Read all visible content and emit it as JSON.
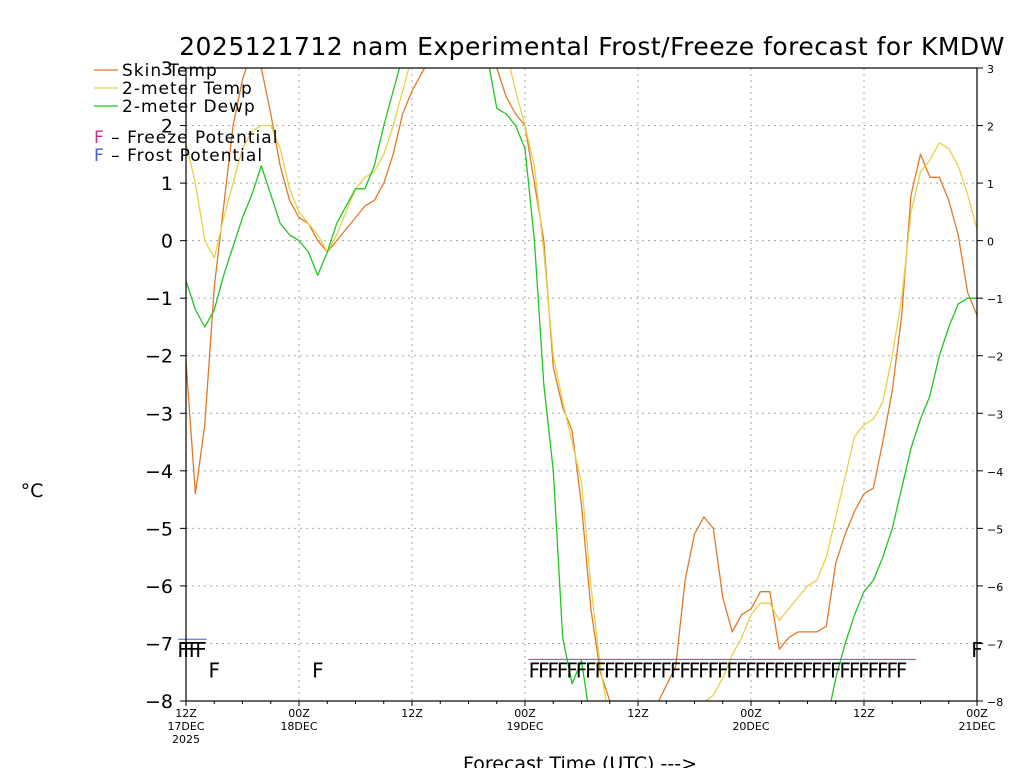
{
  "chart_data": {
    "type": "line",
    "title": "2025121712 nam Experimental Frost/Freeze forecast for KMDW",
    "xlabel": "Forecast Time (UTC) --->",
    "ylabel": "°C",
    "xlim": [
      0,
      84
    ],
    "ylim": [
      -8,
      3
    ],
    "yticks": [
      -8,
      -7,
      -6,
      -5,
      -4,
      -3,
      -2,
      -1,
      0,
      1,
      2,
      3
    ],
    "x_ticks": [
      {
        "x": 0,
        "line1": "12Z",
        "line2": "17DEC",
        "line3": "2025"
      },
      {
        "x": 12,
        "line1": "00Z",
        "line2": "18DEC",
        "line3": ""
      },
      {
        "x": 24,
        "line1": "12Z",
        "line2": "",
        "line3": ""
      },
      {
        "x": 36,
        "line1": "00Z",
        "line2": "19DEC",
        "line3": ""
      },
      {
        "x": 48,
        "line1": "12Z",
        "line2": "",
        "line3": ""
      },
      {
        "x": 60,
        "line1": "00Z",
        "line2": "20DEC",
        "line3": ""
      },
      {
        "x": 72,
        "line1": "12Z",
        "line2": "",
        "line3": ""
      },
      {
        "x": 84,
        "line1": "00Z",
        "line2": "21DEC",
        "line3": ""
      }
    ],
    "grid": true,
    "legend_position": "top-left",
    "series": [
      {
        "name": "Skin Temp",
        "color": "#e07a28",
        "points": [
          [
            0,
            -2.1
          ],
          [
            1,
            -4.4
          ],
          [
            2,
            -3.2
          ],
          [
            3,
            -0.8
          ],
          [
            4,
            0.6
          ],
          [
            5,
            2.0
          ],
          [
            6,
            2.8
          ],
          [
            7,
            3.3
          ],
          [
            8,
            3.0
          ],
          [
            9,
            2.2
          ],
          [
            10,
            1.3
          ],
          [
            11,
            0.7
          ],
          [
            12,
            0.4
          ],
          [
            13,
            0.3
          ],
          [
            14,
            0.0
          ],
          [
            15,
            -0.2
          ],
          [
            16,
            0.0
          ],
          [
            17,
            0.2
          ],
          [
            18,
            0.4
          ],
          [
            19,
            0.6
          ],
          [
            20,
            0.7
          ],
          [
            21,
            1.0
          ],
          [
            22,
            1.5
          ],
          [
            23,
            2.2
          ],
          [
            24,
            2.6
          ],
          [
            25,
            2.9
          ],
          [
            26,
            3.2
          ],
          [
            32,
            3.3
          ],
          [
            33,
            3.0
          ],
          [
            34,
            2.5
          ],
          [
            35,
            2.2
          ],
          [
            36,
            2.0
          ],
          [
            37,
            1.0
          ],
          [
            38,
            0.0
          ],
          [
            39,
            -2.2
          ],
          [
            40,
            -2.9
          ],
          [
            41,
            -3.3
          ],
          [
            42,
            -4.6
          ],
          [
            43,
            -6.4
          ],
          [
            44,
            -7.5
          ],
          [
            45,
            -8.0
          ],
          [
            46,
            -8.4
          ],
          [
            49,
            -8.4
          ],
          [
            52,
            -7.4
          ],
          [
            53,
            -5.9
          ],
          [
            54,
            -5.1
          ],
          [
            55,
            -4.8
          ],
          [
            56,
            -5.0
          ],
          [
            57,
            -6.2
          ],
          [
            58,
            -6.8
          ],
          [
            59,
            -6.5
          ],
          [
            60,
            -6.4
          ],
          [
            61,
            -6.1
          ],
          [
            62,
            -6.1
          ],
          [
            63,
            -7.1
          ],
          [
            64,
            -6.9
          ],
          [
            65,
            -6.8
          ],
          [
            66,
            -6.8
          ],
          [
            67,
            -6.8
          ],
          [
            68,
            -6.7
          ],
          [
            69,
            -5.6
          ],
          [
            70,
            -5.1
          ],
          [
            71,
            -4.7
          ],
          [
            72,
            -4.4
          ],
          [
            73,
            -4.3
          ],
          [
            74,
            -3.5
          ],
          [
            75,
            -2.6
          ],
          [
            76,
            -1.3
          ],
          [
            77,
            0.8
          ],
          [
            78,
            1.5
          ],
          [
            79,
            1.1
          ],
          [
            80,
            1.1
          ],
          [
            81,
            0.7
          ],
          [
            82,
            0.1
          ],
          [
            83,
            -0.9
          ],
          [
            84,
            -1.3
          ]
        ]
      },
      {
        "name": "2-meter Temp",
        "color": "#e6d24a",
        "points": [
          [
            0,
            1.7
          ],
          [
            1,
            1.0
          ],
          [
            2,
            0.0
          ],
          [
            3,
            -0.3
          ],
          [
            4,
            0.4
          ],
          [
            5,
            1.0
          ],
          [
            6,
            1.6
          ],
          [
            7,
            1.9
          ],
          [
            8,
            2.0
          ],
          [
            9,
            2.0
          ],
          [
            10,
            1.6
          ],
          [
            11,
            0.9
          ],
          [
            12,
            0.5
          ],
          [
            13,
            0.3
          ],
          [
            14,
            0.1
          ],
          [
            15,
            -0.2
          ],
          [
            16,
            0.1
          ],
          [
            17,
            0.5
          ],
          [
            18,
            0.9
          ],
          [
            19,
            1.1
          ],
          [
            20,
            1.2
          ],
          [
            21,
            1.5
          ],
          [
            22,
            2.0
          ],
          [
            23,
            2.6
          ],
          [
            24,
            3.2
          ],
          [
            34,
            3.3
          ],
          [
            35,
            2.6
          ],
          [
            36,
            2.0
          ],
          [
            37,
            1.3
          ],
          [
            38,
            -0.2
          ],
          [
            39,
            -2.0
          ],
          [
            40,
            -2.8
          ],
          [
            41,
            -3.5
          ],
          [
            42,
            -4.2
          ],
          [
            43,
            -6.0
          ],
          [
            44,
            -7.4
          ],
          [
            45,
            -8.4
          ],
          [
            52,
            -8.4
          ],
          [
            56,
            -7.9
          ],
          [
            57,
            -7.6
          ],
          [
            58,
            -7.2
          ],
          [
            59,
            -6.9
          ],
          [
            60,
            -6.5
          ],
          [
            61,
            -6.3
          ],
          [
            62,
            -6.3
          ],
          [
            63,
            -6.6
          ],
          [
            64,
            -6.4
          ],
          [
            65,
            -6.2
          ],
          [
            66,
            -6.0
          ],
          [
            67,
            -5.9
          ],
          [
            68,
            -5.5
          ],
          [
            69,
            -4.8
          ],
          [
            70,
            -4.1
          ],
          [
            71,
            -3.4
          ],
          [
            72,
            -3.2
          ],
          [
            73,
            -3.1
          ],
          [
            74,
            -2.8
          ],
          [
            75,
            -2.0
          ],
          [
            76,
            -1.0
          ],
          [
            77,
            0.5
          ],
          [
            78,
            1.2
          ],
          [
            79,
            1.4
          ],
          [
            80,
            1.7
          ],
          [
            81,
            1.6
          ],
          [
            82,
            1.3
          ],
          [
            83,
            0.8
          ],
          [
            84,
            0.2
          ]
        ]
      },
      {
        "name": "2-meter Dewp",
        "color": "#22c422",
        "points": [
          [
            0,
            -0.7
          ],
          [
            1,
            -1.2
          ],
          [
            2,
            -1.5
          ],
          [
            3,
            -1.2
          ],
          [
            4,
            -0.6
          ],
          [
            5,
            -0.1
          ],
          [
            6,
            0.4
          ],
          [
            7,
            0.8
          ],
          [
            8,
            1.3
          ],
          [
            9,
            0.8
          ],
          [
            10,
            0.3
          ],
          [
            11,
            0.1
          ],
          [
            12,
            0.0
          ],
          [
            13,
            -0.2
          ],
          [
            14,
            -0.6
          ],
          [
            15,
            -0.2
          ],
          [
            16,
            0.3
          ],
          [
            17,
            0.6
          ],
          [
            18,
            0.9
          ],
          [
            19,
            0.9
          ],
          [
            20,
            1.3
          ],
          [
            21,
            2.0
          ],
          [
            22,
            2.6
          ],
          [
            23,
            3.2
          ],
          [
            32,
            3.2
          ],
          [
            33,
            2.3
          ],
          [
            34,
            2.2
          ],
          [
            35,
            2.0
          ],
          [
            36,
            1.6
          ],
          [
            37,
            0.0
          ],
          [
            38,
            -2.5
          ],
          [
            39,
            -4.0
          ],
          [
            40,
            -6.9
          ],
          [
            41,
            -7.7
          ],
          [
            42,
            -7.3
          ],
          [
            43,
            -8.4
          ],
          [
            68,
            -8.4
          ],
          [
            69,
            -7.6
          ],
          [
            70,
            -7.0
          ],
          [
            71,
            -6.5
          ],
          [
            72,
            -6.1
          ],
          [
            73,
            -5.9
          ],
          [
            74,
            -5.5
          ],
          [
            75,
            -5.0
          ],
          [
            76,
            -4.3
          ],
          [
            77,
            -3.6
          ],
          [
            78,
            -3.1
          ],
          [
            79,
            -2.7
          ],
          [
            80,
            -2.0
          ],
          [
            81,
            -1.5
          ],
          [
            82,
            -1.1
          ],
          [
            83,
            -1.0
          ],
          [
            84,
            -1.0
          ]
        ]
      }
    ],
    "potential_legend": [
      {
        "letter": "F",
        "text": " – Freeze Potential",
        "color": "#cc2f8e"
      },
      {
        "letter": "F",
        "text": " – Frost Potential",
        "color": "#4a5fd0"
      }
    ],
    "frost_markers": {
      "color": "#4a5fd0",
      "y": -7.1,
      "letter": "F",
      "x": [
        -0.3,
        0.3,
        0.9,
        1.6,
        84
      ]
    },
    "freeze_markers": {
      "color": "#cc2f8e",
      "y": -7.45,
      "letter": "F",
      "x": [
        3,
        14,
        37,
        38,
        39,
        40,
        41,
        42,
        43,
        44,
        45,
        46,
        47,
        48,
        49,
        50,
        51,
        52,
        53,
        54,
        55,
        56,
        57,
        58,
        59,
        60,
        61,
        62,
        63,
        64,
        65,
        66,
        67,
        68,
        69,
        70,
        71,
        72,
        73,
        74,
        75,
        76
      ]
    }
  }
}
